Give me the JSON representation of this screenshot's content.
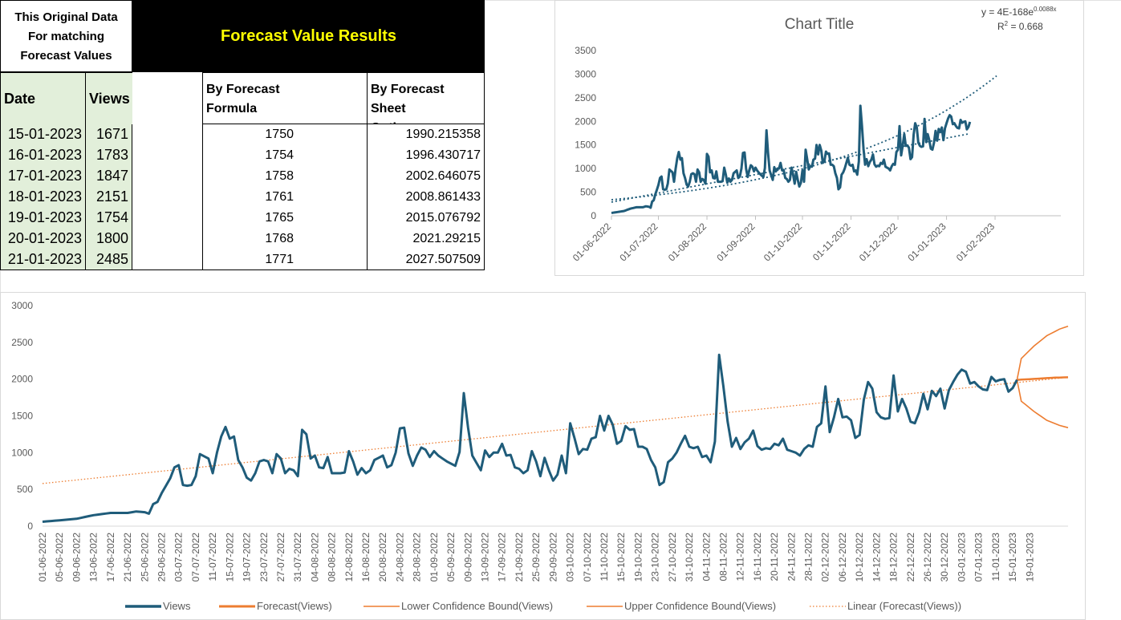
{
  "note_header": [
    "This Original Data",
    "For matching",
    "Forecast Values"
  ],
  "results_title": "Forecast Value Results",
  "col_date": "Date",
  "col_views": "Views",
  "col_formula": [
    "By Forecast",
    "Formula"
  ],
  "col_sheet": [
    "By Forecast Sheet",
    "Option"
  ],
  "rows": [
    {
      "date": "15-01-2023",
      "views": "1671",
      "formula": "1750",
      "sheet": "1990.215358"
    },
    {
      "date": "16-01-2023",
      "views": "1783",
      "formula": "1754",
      "sheet": "1996.430717"
    },
    {
      "date": "17-01-2023",
      "views": "1847",
      "formula": "1758",
      "sheet": "2002.646075"
    },
    {
      "date": "18-01-2023",
      "views": "2151",
      "formula": "1761",
      "sheet": "2008.861433"
    },
    {
      "date": "19-01-2023",
      "views": "1754",
      "formula": "1765",
      "sheet": "2015.076792"
    },
    {
      "date": "20-01-2023",
      "views": "1800",
      "formula": "1768",
      "sheet": "2021.29215"
    },
    {
      "date": "21-01-2023",
      "views": "2485",
      "formula": "1771",
      "sheet": "2027.507509"
    }
  ],
  "chart_data": [
    {
      "type": "line",
      "title": "Chart Title",
      "equation": "y = 4E-168e",
      "equation_exp": "0.0088x",
      "r2_prefix": "R",
      "r2_sup": "2",
      "r2_value": " = 0.668",
      "ylim": [
        0,
        3500
      ],
      "y_ticks": [
        "0",
        "500",
        "1000",
        "1500",
        "2000",
        "2500",
        "3000",
        "3500"
      ],
      "x_ticks": [
        "01-06-2022",
        "01-07-2022",
        "01-08-2022",
        "01-09-2022",
        "01-10-2022",
        "01-11-2022",
        "01-12-2022",
        "01-01-2023",
        "01-02-2023"
      ],
      "trendlines": [
        "exponential",
        "linear"
      ],
      "colors": {
        "series": "#1f5c7a"
      }
    },
    {
      "type": "line",
      "ylim": [
        0,
        3000
      ],
      "y_ticks": [
        "0",
        "500",
        "1000",
        "1500",
        "2000",
        "2500",
        "3000"
      ],
      "x_ticks": [
        "01-06-2022",
        "05-06-2022",
        "09-06-2022",
        "13-06-2022",
        "17-06-2022",
        "21-06-2022",
        "25-06-2022",
        "29-06-2022",
        "03-07-2022",
        "07-07-2022",
        "11-07-2022",
        "15-07-2022",
        "19-07-2022",
        "23-07-2022",
        "27-07-2022",
        "31-07-2022",
        "04-08-2022",
        "08-08-2022",
        "12-08-2022",
        "16-08-2022",
        "20-08-2022",
        "24-08-2022",
        "28-08-2022",
        "01-09-2022",
        "05-09-2022",
        "09-09-2022",
        "13-09-2022",
        "17-09-2022",
        "21-09-2022",
        "25-09-2022",
        "29-09-2022",
        "03-10-2022",
        "07-10-2022",
        "11-10-2022",
        "15-10-2022",
        "19-10-2022",
        "23-10-2022",
        "27-10-2022",
        "31-10-2022",
        "04-11-2022",
        "08-11-2022",
        "12-11-2022",
        "16-11-2022",
        "20-11-2022",
        "24-11-2022",
        "28-11-2022",
        "02-12-2022",
        "06-12-2022",
        "10-12-2022",
        "14-12-2022",
        "18-12-2022",
        "22-12-2022",
        "26-12-2022",
        "30-12-2022",
        "03-01-2023",
        "07-01-2023",
        "11-01-2023",
        "15-01-2023",
        "19-01-2023"
      ],
      "legend": [
        "Views",
        "Forecast(Views)",
        "Lower Confidence Bound(Views)",
        "Upper Confidence Bound(Views)",
        "Linear (Forecast(Views))"
      ],
      "colors": {
        "views": "#1f5c7a",
        "forecast": "#ed7d31"
      },
      "views_anchors": [
        [
          0,
          60
        ],
        [
          4,
          80
        ],
        [
          8,
          100
        ],
        [
          12,
          150
        ],
        [
          16,
          180
        ],
        [
          20,
          180
        ],
        [
          22,
          200
        ],
        [
          24,
          190
        ],
        [
          25,
          170
        ],
        [
          26,
          300
        ],
        [
          27,
          330
        ],
        [
          28,
          450
        ],
        [
          29,
          550
        ],
        [
          30,
          650
        ],
        [
          31,
          800
        ],
        [
          32,
          830
        ],
        [
          33,
          560
        ],
        [
          34,
          550
        ],
        [
          35,
          560
        ],
        [
          36,
          680
        ],
        [
          37,
          980
        ],
        [
          38,
          950
        ],
        [
          39,
          920
        ],
        [
          40,
          720
        ],
        [
          41,
          1000
        ],
        [
          42,
          1220
        ],
        [
          43,
          1350
        ],
        [
          44,
          1190
        ],
        [
          45,
          1220
        ],
        [
          46,
          900
        ],
        [
          47,
          800
        ],
        [
          48,
          660
        ],
        [
          49,
          620
        ],
        [
          50,
          720
        ],
        [
          51,
          880
        ],
        [
          52,
          900
        ],
        [
          53,
          880
        ],
        [
          54,
          720
        ],
        [
          55,
          980
        ],
        [
          56,
          920
        ],
        [
          57,
          720
        ],
        [
          58,
          780
        ],
        [
          59,
          760
        ],
        [
          60,
          680
        ],
        [
          61,
          1310
        ],
        [
          62,
          1250
        ],
        [
          63,
          920
        ],
        [
          64,
          960
        ],
        [
          65,
          800
        ],
        [
          66,
          790
        ],
        [
          67,
          940
        ],
        [
          68,
          720
        ],
        [
          69,
          720
        ],
        [
          70,
          720
        ],
        [
          71,
          730
        ],
        [
          72,
          1020
        ],
        [
          73,
          880
        ],
        [
          74,
          700
        ],
        [
          75,
          790
        ],
        [
          76,
          720
        ],
        [
          77,
          760
        ],
        [
          78,
          900
        ],
        [
          79,
          930
        ],
        [
          80,
          960
        ],
        [
          81,
          800
        ],
        [
          82,
          830
        ],
        [
          83,
          1000
        ],
        [
          84,
          1330
        ],
        [
          85,
          1340
        ],
        [
          86,
          990
        ],
        [
          87,
          820
        ],
        [
          88,
          960
        ],
        [
          89,
          1070
        ],
        [
          90,
          1040
        ],
        [
          91,
          940
        ],
        [
          92,
          1020
        ],
        [
          93,
          960
        ],
        [
          94,
          920
        ],
        [
          95,
          880
        ],
        [
          96,
          850
        ],
        [
          97,
          820
        ],
        [
          98,
          1010
        ],
        [
          99,
          1810
        ],
        [
          100,
          1340
        ],
        [
          101,
          960
        ],
        [
          102,
          860
        ],
        [
          103,
          760
        ],
        [
          104,
          1030
        ],
        [
          105,
          940
        ],
        [
          106,
          1000
        ],
        [
          107,
          1000
        ],
        [
          108,
          1120
        ],
        [
          109,
          960
        ],
        [
          110,
          970
        ],
        [
          111,
          800
        ],
        [
          112,
          780
        ],
        [
          113,
          720
        ],
        [
          114,
          760
        ],
        [
          115,
          1020
        ],
        [
          116,
          880
        ],
        [
          117,
          680
        ],
        [
          118,
          930
        ],
        [
          119,
          760
        ],
        [
          120,
          620
        ],
        [
          121,
          700
        ],
        [
          122,
          960
        ],
        [
          123,
          720
        ],
        [
          124,
          1400
        ],
        [
          125,
          1200
        ],
        [
          126,
          980
        ],
        [
          127,
          1050
        ],
        [
          128,
          1040
        ],
        [
          129,
          1190
        ],
        [
          130,
          1210
        ],
        [
          131,
          1500
        ],
        [
          132,
          1300
        ],
        [
          133,
          1500
        ],
        [
          134,
          1380
        ],
        [
          135,
          1120
        ],
        [
          136,
          1160
        ],
        [
          137,
          1360
        ],
        [
          138,
          1310
        ],
        [
          139,
          1320
        ],
        [
          140,
          1080
        ],
        [
          141,
          1080
        ],
        [
          142,
          1050
        ],
        [
          143,
          900
        ],
        [
          144,
          800
        ],
        [
          145,
          560
        ],
        [
          146,
          600
        ],
        [
          147,
          870
        ],
        [
          148,
          920
        ],
        [
          149,
          1000
        ],
        [
          150,
          1120
        ],
        [
          151,
          1230
        ],
        [
          152,
          1080
        ],
        [
          153,
          1060
        ],
        [
          154,
          1080
        ],
        [
          155,
          940
        ],
        [
          156,
          960
        ],
        [
          157,
          870
        ],
        [
          158,
          1150
        ],
        [
          159,
          2330
        ],
        [
          160,
          1900
        ],
        [
          161,
          1420
        ],
        [
          162,
          1080
        ],
        [
          163,
          1200
        ],
        [
          164,
          1050
        ],
        [
          165,
          1140
        ],
        [
          166,
          1190
        ],
        [
          167,
          1300
        ],
        [
          168,
          1090
        ],
        [
          169,
          1040
        ],
        [
          170,
          1060
        ],
        [
          171,
          1050
        ],
        [
          172,
          1120
        ],
        [
          173,
          1100
        ],
        [
          174,
          1190
        ],
        [
          175,
          1040
        ],
        [
          176,
          1020
        ],
        [
          177,
          1000
        ],
        [
          178,
          960
        ],
        [
          179,
          1050
        ],
        [
          180,
          1100
        ],
        [
          181,
          1080
        ],
        [
          182,
          1350
        ],
        [
          183,
          1400
        ],
        [
          184,
          1900
        ],
        [
          185,
          1280
        ],
        [
          186,
          1480
        ],
        [
          187,
          1730
        ],
        [
          188,
          1480
        ],
        [
          189,
          1490
        ],
        [
          190,
          1440
        ],
        [
          191,
          1200
        ],
        [
          192,
          1240
        ],
        [
          193,
          1720
        ],
        [
          194,
          1960
        ],
        [
          195,
          1870
        ],
        [
          196,
          1550
        ],
        [
          197,
          1480
        ],
        [
          198,
          1460
        ],
        [
          199,
          1470
        ],
        [
          200,
          2050
        ],
        [
          201,
          1560
        ],
        [
          202,
          1730
        ],
        [
          203,
          1600
        ],
        [
          204,
          1420
        ],
        [
          205,
          1400
        ],
        [
          206,
          1550
        ],
        [
          207,
          1800
        ],
        [
          208,
          1590
        ],
        [
          209,
          1840
        ],
        [
          210,
          1770
        ],
        [
          211,
          1870
        ],
        [
          212,
          1600
        ],
        [
          213,
          1850
        ],
        [
          214,
          1960
        ],
        [
          215,
          2060
        ],
        [
          216,
          2130
        ],
        [
          217,
          2100
        ],
        [
          218,
          1940
        ],
        [
          219,
          1960
        ],
        [
          220,
          1900
        ],
        [
          221,
          1860
        ],
        [
          222,
          1850
        ],
        [
          223,
          2030
        ],
        [
          224,
          1970
        ],
        [
          225,
          1990
        ],
        [
          226,
          2000
        ],
        [
          227,
          1830
        ],
        [
          228,
          1880
        ],
        [
          229,
          1990
        ]
      ],
      "forecast_anchors": [
        [
          229,
          1990
        ],
        [
          232,
          2000
        ],
        [
          235,
          2010
        ],
        [
          238,
          2020
        ],
        [
          241,
          2025
        ]
      ],
      "upper_anchors": [
        [
          229,
          1990
        ],
        [
          230,
          2280
        ],
        [
          233,
          2450
        ],
        [
          236,
          2590
        ],
        [
          239,
          2680
        ],
        [
          241,
          2720
        ]
      ],
      "lower_anchors": [
        [
          229,
          1990
        ],
        [
          230,
          1700
        ],
        [
          233,
          1560
        ],
        [
          236,
          1440
        ],
        [
          239,
          1370
        ],
        [
          241,
          1340
        ]
      ],
      "linear_trend": [
        [
          0,
          580
        ],
        [
          241,
          2025
        ]
      ]
    }
  ]
}
